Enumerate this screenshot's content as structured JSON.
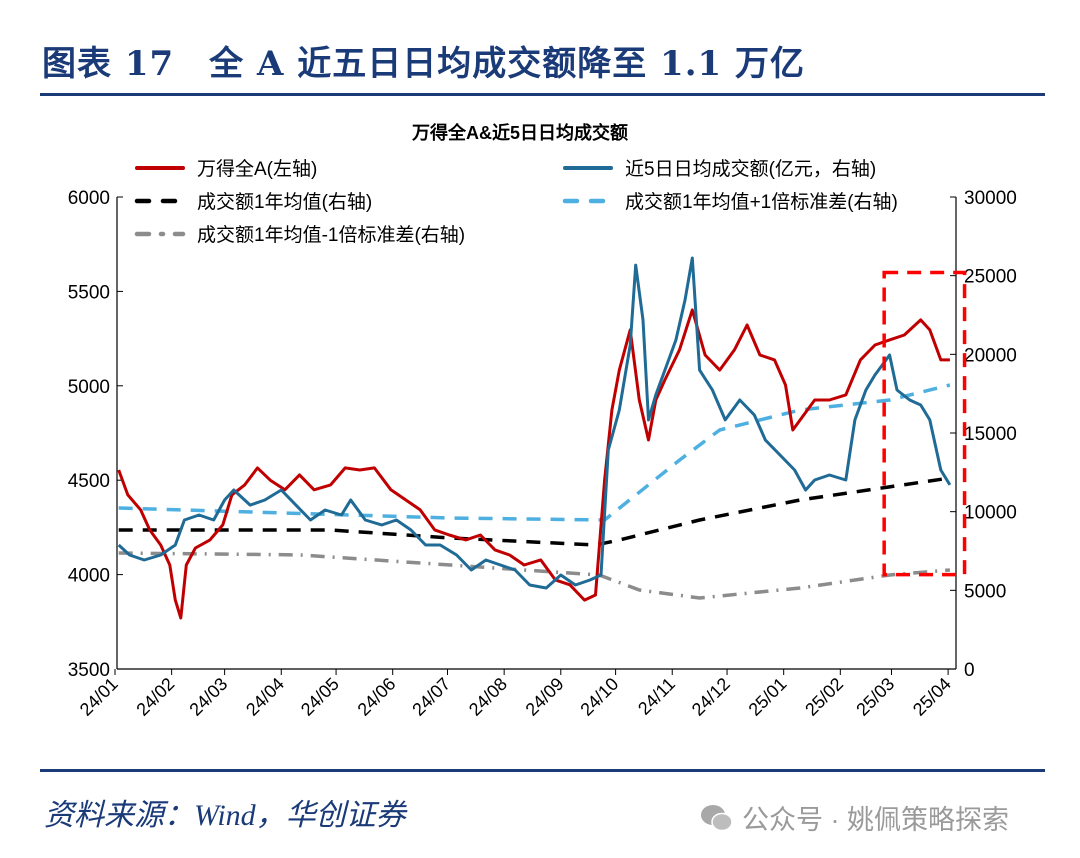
{
  "figure": {
    "title": "图表 17　全 A 近五日日均成交额降至 1.1 万亿",
    "source": "资料来源：Wind，华创证券",
    "watermark": "公众号 · 姚佩策略探索",
    "watermark_icon": "wechat-icon",
    "title_color": "#1a3a78"
  },
  "chart_data": {
    "type": "line",
    "title": "万得全A&近5日日均成交额",
    "x_type": "date",
    "x_ticks": [
      "24/01",
      "24/02",
      "24/03",
      "24/04",
      "24/05",
      "24/06",
      "24/07",
      "24/08",
      "24/09",
      "24/10",
      "24/11",
      "24/12",
      "25/01",
      "25/02",
      "25/03",
      "25/04"
    ],
    "x_tick_dates": [
      "2024-01-01",
      "2024-02-01",
      "2024-03-01",
      "2024-04-01",
      "2024-05-01",
      "2024-06-01",
      "2024-07-01",
      "2024-08-01",
      "2024-09-01",
      "2024-10-01",
      "2024-11-01",
      "2024-12-01",
      "2025-01-01",
      "2025-02-01",
      "2025-03-01",
      "2025-04-01"
    ],
    "y_left": {
      "range": [
        3500,
        6000
      ],
      "ticks": [
        3500,
        4000,
        4500,
        5000,
        5500,
        6000
      ]
    },
    "y_right": {
      "range": [
        0,
        30000
      ],
      "ticks": [
        0,
        5000,
        10000,
        15000,
        20000,
        25000,
        30000
      ]
    },
    "grid": false,
    "legend_placement": "top",
    "series": [
      {
        "name": "万得全A(左轴)",
        "axis": "left",
        "color": "#c00000",
        "style": "solid",
        "points": [
          [
            "2024-01-03",
            4554
          ],
          [
            "2024-01-08",
            4422
          ],
          [
            "2024-01-15",
            4343
          ],
          [
            "2024-01-20",
            4237
          ],
          [
            "2024-01-26",
            4157
          ],
          [
            "2024-01-31",
            4051
          ],
          [
            "2024-02-03",
            3865
          ],
          [
            "2024-02-06",
            3770
          ],
          [
            "2024-02-09",
            4051
          ],
          [
            "2024-02-14",
            4141
          ],
          [
            "2024-02-22",
            4184
          ],
          [
            "2024-02-29",
            4263
          ],
          [
            "2024-03-05",
            4422
          ],
          [
            "2024-03-12",
            4475
          ],
          [
            "2024-03-19",
            4565
          ],
          [
            "2024-03-26",
            4500
          ],
          [
            "2024-04-03",
            4449
          ],
          [
            "2024-04-11",
            4528
          ],
          [
            "2024-04-19",
            4449
          ],
          [
            "2024-04-28",
            4475
          ],
          [
            "2024-05-06",
            4565
          ],
          [
            "2024-05-14",
            4554
          ],
          [
            "2024-05-22",
            4565
          ],
          [
            "2024-05-31",
            4449
          ],
          [
            "2024-06-08",
            4396
          ],
          [
            "2024-06-16",
            4343
          ],
          [
            "2024-06-24",
            4237
          ],
          [
            "2024-07-02",
            4210
          ],
          [
            "2024-07-11",
            4184
          ],
          [
            "2024-07-19",
            4210
          ],
          [
            "2024-07-27",
            4131
          ],
          [
            "2024-08-04",
            4104
          ],
          [
            "2024-08-12",
            4051
          ],
          [
            "2024-08-21",
            4078
          ],
          [
            "2024-08-29",
            3972
          ],
          [
            "2024-09-06",
            3946
          ],
          [
            "2024-09-14",
            3865
          ],
          [
            "2024-09-20",
            3892
          ],
          [
            "2024-09-25",
            4500
          ],
          [
            "2024-09-29",
            4872
          ],
          [
            "2024-10-03",
            5083
          ],
          [
            "2024-10-09",
            5296
          ],
          [
            "2024-10-14",
            4925
          ],
          [
            "2024-10-19",
            4713
          ],
          [
            "2024-10-23",
            4925
          ],
          [
            "2024-10-28",
            5031
          ],
          [
            "2024-11-05",
            5190
          ],
          [
            "2024-11-12",
            5402
          ],
          [
            "2024-11-19",
            5163
          ],
          [
            "2024-11-27",
            5083
          ],
          [
            "2024-12-05",
            5190
          ],
          [
            "2024-12-12",
            5322
          ],
          [
            "2024-12-19",
            5163
          ],
          [
            "2024-12-27",
            5137
          ],
          [
            "2025-01-02",
            5004
          ],
          [
            "2025-01-06",
            4766
          ],
          [
            "2025-01-10",
            4819
          ],
          [
            "2025-01-18",
            4925
          ],
          [
            "2025-01-26",
            4925
          ],
          [
            "2025-02-04",
            4952
          ],
          [
            "2025-02-12",
            5137
          ],
          [
            "2025-02-20",
            5216
          ],
          [
            "2025-02-28",
            5243
          ],
          [
            "2025-03-08",
            5269
          ],
          [
            "2025-03-17",
            5349
          ],
          [
            "2025-03-22",
            5296
          ],
          [
            "2025-03-28",
            5137
          ],
          [
            "2025-04-02",
            5137
          ]
        ]
      },
      {
        "name": "近5日日均成交额(亿元，右轴)",
        "axis": "right",
        "color": "#1f6b96",
        "style": "solid",
        "points": [
          [
            "2024-01-03",
            7880
          ],
          [
            "2024-01-09",
            7245
          ],
          [
            "2024-01-17",
            6927
          ],
          [
            "2024-01-26",
            7245
          ],
          [
            "2024-02-03",
            7880
          ],
          [
            "2024-02-08",
            9470
          ],
          [
            "2024-02-16",
            9788
          ],
          [
            "2024-02-24",
            9470
          ],
          [
            "2024-03-01",
            10741
          ],
          [
            "2024-03-06",
            11380
          ],
          [
            "2024-03-15",
            10420
          ],
          [
            "2024-03-23",
            10741
          ],
          [
            "2024-04-01",
            11380
          ],
          [
            "2024-04-09",
            10420
          ],
          [
            "2024-04-17",
            9470
          ],
          [
            "2024-04-25",
            10105
          ],
          [
            "2024-05-04",
            9788
          ],
          [
            "2024-05-09",
            10741
          ],
          [
            "2024-05-17",
            9470
          ],
          [
            "2024-05-26",
            9152
          ],
          [
            "2024-06-03",
            9470
          ],
          [
            "2024-06-11",
            8835
          ],
          [
            "2024-06-19",
            7880
          ],
          [
            "2024-06-27",
            7880
          ],
          [
            "2024-07-06",
            7245
          ],
          [
            "2024-07-14",
            6293
          ],
          [
            "2024-07-22",
            6927
          ],
          [
            "2024-07-30",
            6610
          ],
          [
            "2024-08-07",
            6293
          ],
          [
            "2024-08-15",
            5340
          ],
          [
            "2024-08-24",
            5150
          ],
          [
            "2024-09-01",
            5974
          ],
          [
            "2024-09-09",
            5340
          ],
          [
            "2024-09-17",
            5656
          ],
          [
            "2024-09-23",
            5974
          ],
          [
            "2024-09-27",
            13920
          ],
          [
            "2024-10-03",
            16460
          ],
          [
            "2024-10-09",
            20590
          ],
          [
            "2024-10-12",
            25670
          ],
          [
            "2024-10-16",
            22180
          ],
          [
            "2024-10-19",
            15830
          ],
          [
            "2024-10-23",
            17420
          ],
          [
            "2024-10-28",
            19000
          ],
          [
            "2024-11-03",
            20910
          ],
          [
            "2024-11-08",
            23450
          ],
          [
            "2024-11-12",
            26120
          ],
          [
            "2024-11-16",
            19000
          ],
          [
            "2024-11-23",
            17730
          ],
          [
            "2024-11-30",
            15830
          ],
          [
            "2024-12-08",
            17100
          ],
          [
            "2024-12-16",
            16140
          ],
          [
            "2024-12-22",
            14550
          ],
          [
            "2024-12-30",
            13600
          ],
          [
            "2025-01-07",
            12650
          ],
          [
            "2025-01-13",
            11380
          ],
          [
            "2025-01-18",
            12010
          ],
          [
            "2025-01-26",
            12330
          ],
          [
            "2025-02-04",
            12010
          ],
          [
            "2025-02-09",
            15830
          ],
          [
            "2025-02-15",
            17730
          ],
          [
            "2025-02-20",
            18690
          ],
          [
            "2025-02-26",
            19640
          ],
          [
            "2025-02-28",
            19960
          ],
          [
            "2025-03-04",
            17730
          ],
          [
            "2025-03-11",
            17100
          ],
          [
            "2025-03-17",
            16780
          ],
          [
            "2025-03-22",
            15830
          ],
          [
            "2025-03-28",
            12650
          ],
          [
            "2025-04-02",
            11700
          ]
        ]
      },
      {
        "name": "成交额1年均值(右轴)",
        "axis": "right",
        "color": "#000000",
        "style": "dash",
        "points": [
          [
            "2024-01-03",
            8835
          ],
          [
            "2024-04-28",
            8835
          ],
          [
            "2024-07-02",
            8330
          ],
          [
            "2024-09-20",
            7880
          ],
          [
            "2024-10-03",
            8200
          ],
          [
            "2024-11-16",
            9470
          ],
          [
            "2025-01-10",
            10741
          ],
          [
            "2025-04-02",
            12140
          ]
        ]
      },
      {
        "name": "成交额1年均值+1倍标准差(右轴)",
        "axis": "right",
        "color": "#4eb0e0",
        "style": "dash",
        "points": [
          [
            "2024-01-03",
            10232
          ],
          [
            "2024-07-02",
            9600
          ],
          [
            "2024-09-25",
            9470
          ],
          [
            "2024-11-05",
            13280
          ],
          [
            "2024-11-27",
            15190
          ],
          [
            "2025-01-10",
            16460
          ],
          [
            "2025-02-28",
            17100
          ],
          [
            "2025-04-02",
            18050
          ]
        ]
      },
      {
        "name": "成交额1年均值-1倍标准差(右轴)",
        "axis": "right",
        "color": "#8c8c8c",
        "style": "dashdot",
        "points": [
          [
            "2024-01-03",
            7373
          ],
          [
            "2024-04-11",
            7250
          ],
          [
            "2024-09-22",
            5974
          ],
          [
            "2024-10-14",
            5020
          ],
          [
            "2024-11-16",
            4510
          ],
          [
            "2025-01-10",
            5150
          ],
          [
            "2025-02-28",
            5974
          ],
          [
            "2025-04-02",
            6290
          ]
        ]
      }
    ],
    "annotations": [
      {
        "type": "dashed-box",
        "color": "#ff0000",
        "date_range": [
          "2025-02-25",
          "2025-04-10"
        ],
        "y_right_range": [
          6000,
          25200
        ]
      }
    ]
  }
}
